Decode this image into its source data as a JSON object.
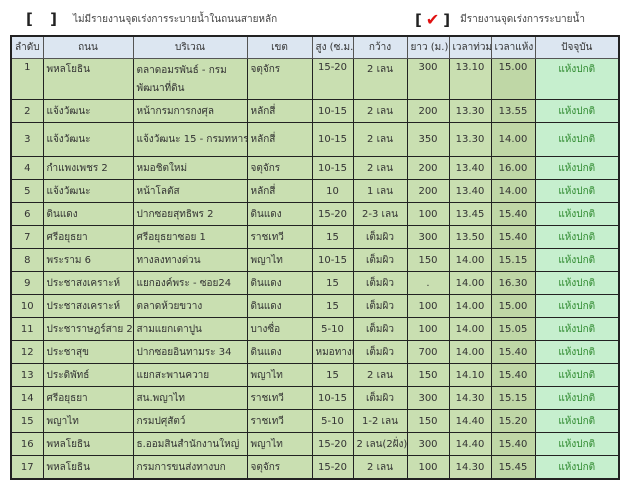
{
  "legend": {
    "no_report": {
      "mark": "[  ]",
      "label": "ไม่มีรายงานจุดเร่งการระบายน้ำในถนนสายหลัก"
    },
    "report": {
      "open": "[",
      "mark": "✔",
      "close": "]",
      "label": "มีรายงานจุดเร่งการระบายน้ำ"
    }
  },
  "colors": {
    "header": "#dce6f1",
    "cell": "#c9dfb1",
    "status": "#c6efce",
    "status_text": "#2f8a2f",
    "check": "#e01010"
  },
  "headers": [
    "ลำดับ",
    "ถนน",
    "บริเวณ",
    "เขต",
    "สูง (ซ.ม.)",
    "กว้าง",
    "ยาว (ม.)",
    "เวลาท่วม",
    "เวลาแห้ง",
    "ปัจจุบัน"
  ],
  "rows": [
    [
      "1",
      "พหลโยธิน",
      "ตลาดอมรพันธ์ - กรมพัฒนาที่ดิน",
      "จตุจักร",
      "15-20",
      "2 เลน",
      "300",
      "13.10",
      "15.00",
      "แห้งปกติ"
    ],
    [
      "2",
      "แจ้งวัฒนะ",
      "หน้ากรมการกงศุล",
      "หลักสี่",
      "10-15",
      "2 เลน",
      "200",
      "13.30",
      "13.55",
      "แห้งปกติ"
    ],
    [
      "3",
      "แจ้งวัฒนะ",
      "แจ้งวัฒนะ 15 - กรมทหาร",
      "หลักสี่",
      "10-15",
      "2 เลน",
      "350",
      "13.30",
      "14.00",
      "แห้งปกติ"
    ],
    [
      "4",
      "กำแพงเพชร 2",
      "หมอชิตใหม่",
      "จตุจักร",
      "10-15",
      "2 เลน",
      "200",
      "13.40",
      "16.00",
      "แห้งปกติ"
    ],
    [
      "5",
      "แจ้งวัฒนะ",
      "หน้าโลตัส",
      "หลักสี่",
      "10",
      "1 เลน",
      "200",
      "13.40",
      "14.00",
      "แห้งปกติ"
    ],
    [
      "6",
      "ดินแดง",
      "ปากซอยสุทธิพร 2",
      "ดินแดง",
      "15-20",
      "2-3 เลน",
      "100",
      "13.45",
      "15.40",
      "แห้งปกติ"
    ],
    [
      "7",
      "ศรีอยุธยา",
      "ศรีอยุธยาซอย 1",
      "ราชเทวี",
      "15",
      "เต็มผิว",
      "300",
      "13.50",
      "15.40",
      "แห้งปกติ"
    ],
    [
      "8",
      "พระราม 6",
      "ทางลงทางด่วน",
      "พญาไท",
      "10-15",
      "เต็มผิว",
      "150",
      "14.00",
      "15.15",
      "แห้งปกติ"
    ],
    [
      "9",
      "ประชาสงเคราะห์",
      "แยกองค์พระ - ซอย24",
      "ดินแดง",
      "15",
      "เต็มผิว",
      ".",
      "14.00",
      "16.30",
      "แห้งปกติ"
    ],
    [
      "10",
      "ประชาสงเคราะห์",
      "ตลาดห้วยขวาง",
      "ดินแดง",
      "15",
      "เต็มผิว",
      "100",
      "14.00",
      "15.00",
      "แห้งปกติ"
    ],
    [
      "11",
      "ประชาราษฎร์สาย 2",
      "สามแยกเตาปูน",
      "บางซื่อ",
      "5-10",
      "เต็มผิว",
      "100",
      "14.00",
      "15.05",
      "แห้งปกติ"
    ],
    [
      "12",
      "ประชาสุข",
      "ปากซอยอินทามระ 34",
      "ดินแดง",
      "หมอทางเท้",
      "เต็มผิว",
      "700",
      "14.00",
      "15.40",
      "แห้งปกติ"
    ],
    [
      "13",
      "ประดิพัทธ์",
      "แยกสะพานควาย",
      "พญาไท",
      "15",
      "2 เลน",
      "150",
      "14.10",
      "15.40",
      "แห้งปกติ"
    ],
    [
      "14",
      "ศรีอยุธยา",
      "สน.พญาไท",
      "ราชเทวี",
      "10-15",
      "เต็มผิว",
      "300",
      "14.30",
      "15.15",
      "แห้งปกติ"
    ],
    [
      "15",
      "พญาไท",
      "กรมปศุสัตว์",
      "ราชเทวี",
      "5-10",
      "1-2 เลน",
      "150",
      "14.40",
      "15.20",
      "แห้งปกติ"
    ],
    [
      "16",
      "พหลโยธิน",
      "ธ.ออมสินสำนักงานใหญ่",
      "พญาไท",
      "15-20",
      "2 เลน(2ฝั่ง)",
      "300",
      "14.40",
      "15.40",
      "แห้งปกติ"
    ],
    [
      "17",
      "พหลโยธิน",
      "กรมการขนส่งทางบก",
      "จตุจักร",
      "15-20",
      "2 เลน",
      "100",
      "14.30",
      "15.45",
      "แห้งปกติ"
    ]
  ]
}
